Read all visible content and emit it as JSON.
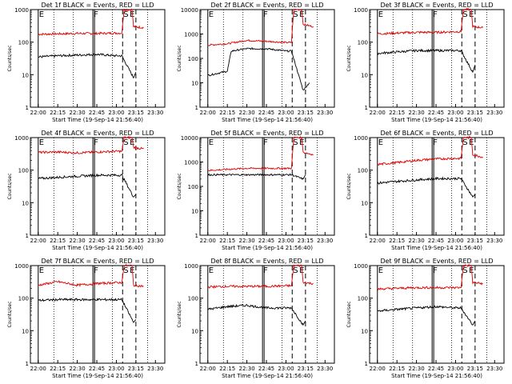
{
  "colors": {
    "events": "#000000",
    "lld": "#e00000",
    "background": "#ffffff"
  },
  "chart_data": [
    {
      "type": "line",
      "title": "Det 1f BLACK = Events, RED = LLD",
      "xlabel": "Start Time (19-Sep-14 21:56:40)",
      "ylabel": "Counts/sec",
      "x_ticks": [
        "22:00",
        "22:15",
        "22:30",
        "22:45",
        "23:00",
        "23:15",
        "23:30"
      ],
      "y_ticks": [
        "1",
        "10",
        "100",
        "1000"
      ],
      "y_scale": "log",
      "ylim": [
        1,
        1000
      ],
      "markers": [
        "E",
        "F",
        "S",
        "E"
      ],
      "series": [
        {
          "values": [
            [
              22.0,
              175
            ],
            [
              22.25,
              180
            ],
            [
              22.5,
              185
            ],
            [
              22.75,
              185
            ],
            [
              23.0,
              190
            ],
            [
              23.07,
              190
            ],
            [
              23.1,
              1000
            ],
            [
              23.2,
              1000
            ],
            [
              23.22,
              300
            ],
            [
              23.35,
              280
            ]
          ]
        },
        {
          "values": [
            [
              22.0,
              35
            ],
            [
              22.25,
              38
            ],
            [
              22.5,
              40
            ],
            [
              22.75,
              42
            ],
            [
              23.0,
              38
            ],
            [
              23.07,
              38
            ],
            [
              23.22,
              8
            ],
            [
              23.25,
              12
            ]
          ]
        }
      ]
    },
    {
      "type": "line",
      "title": "Det 2f BLACK = Events, RED = LLD",
      "xlabel": "Start Time (19-Sep-14 21:56:40)",
      "ylabel": "Counts/sec",
      "x_ticks": [
        "22:00",
        "22:15",
        "22:30",
        "22:45",
        "23:00",
        "23:15",
        "23:30"
      ],
      "y_ticks": [
        "1",
        "10",
        "100",
        "1000",
        "10000"
      ],
      "y_scale": "log",
      "ylim": [
        1,
        10000
      ],
      "markers": [
        "E",
        "F",
        "S",
        "E"
      ],
      "series": [
        {
          "values": [
            [
              22.0,
              350
            ],
            [
              22.25,
              400
            ],
            [
              22.5,
              550
            ],
            [
              22.75,
              500
            ],
            [
              23.0,
              450
            ],
            [
              23.07,
              450
            ],
            [
              23.1,
              10000
            ],
            [
              23.2,
              10000
            ],
            [
              23.22,
              2500
            ],
            [
              23.35,
              2000
            ]
          ]
        },
        {
          "values": [
            [
              22.0,
              20
            ],
            [
              22.25,
              30
            ],
            [
              22.3,
              200
            ],
            [
              22.5,
              250
            ],
            [
              22.75,
              250
            ],
            [
              23.0,
              200
            ],
            [
              23.07,
              200
            ],
            [
              23.22,
              5
            ],
            [
              23.3,
              10
            ]
          ]
        }
      ]
    },
    {
      "type": "line",
      "title": "Det 3f BLACK = Events, RED = LLD",
      "xlabel": "Start Time (19-Sep-14 21:56:40)",
      "ylabel": "Counts/sec",
      "x_ticks": [
        "22:00",
        "22:15",
        "22:30",
        "22:45",
        "23:00",
        "23:15",
        "23:30"
      ],
      "y_ticks": [
        "1",
        "10",
        "100",
        "1000"
      ],
      "y_scale": "log",
      "ylim": [
        1,
        1000
      ],
      "markers": [
        "E",
        "F",
        "S",
        "E"
      ],
      "series": [
        {
          "values": [
            [
              22.0,
              180
            ],
            [
              22.25,
              190
            ],
            [
              22.5,
              200
            ],
            [
              22.75,
              200
            ],
            [
              23.0,
              210
            ],
            [
              23.07,
              210
            ],
            [
              23.1,
              1000
            ],
            [
              23.2,
              1000
            ],
            [
              23.22,
              300
            ],
            [
              23.35,
              280
            ]
          ]
        },
        {
          "values": [
            [
              22.0,
              45
            ],
            [
              22.25,
              50
            ],
            [
              22.5,
              55
            ],
            [
              22.75,
              55
            ],
            [
              23.0,
              55
            ],
            [
              23.07,
              55
            ],
            [
              23.22,
              12
            ],
            [
              23.25,
              20
            ]
          ]
        }
      ]
    },
    {
      "type": "line",
      "title": "Det 4f BLACK = Events, RED = LLD",
      "xlabel": "Start Time (19-Sep-14 21:56:40)",
      "ylabel": "Counts/sec",
      "x_ticks": [
        "22:00",
        "22:15",
        "22:30",
        "22:45",
        "23:00",
        "23:15",
        "23:30"
      ],
      "y_ticks": [
        "1",
        "10",
        "100",
        "1000"
      ],
      "y_scale": "log",
      "ylim": [
        1,
        1000
      ],
      "markers": [
        "E",
        "F",
        "S",
        "E"
      ],
      "series": [
        {
          "values": [
            [
              22.0,
              350
            ],
            [
              22.25,
              360
            ],
            [
              22.5,
              340
            ],
            [
              22.75,
              360
            ],
            [
              23.0,
              380
            ],
            [
              23.07,
              380
            ],
            [
              23.1,
              1000
            ],
            [
              23.2,
              1000
            ],
            [
              23.22,
              500
            ],
            [
              23.35,
              450
            ]
          ]
        },
        {
          "values": [
            [
              22.0,
              55
            ],
            [
              22.25,
              60
            ],
            [
              22.5,
              65
            ],
            [
              22.75,
              70
            ],
            [
              23.0,
              70
            ],
            [
              23.07,
              70
            ],
            [
              23.22,
              15
            ],
            [
              23.25,
              18
            ]
          ]
        }
      ]
    },
    {
      "type": "line",
      "title": "Det 5f BLACK = Events, RED = LLD",
      "xlabel": "Start Time (19-Sep-14 21:56:40)",
      "ylabel": "Counts/sec",
      "x_ticks": [
        "22:00",
        "22:15",
        "22:30",
        "22:45",
        "23:00",
        "23:15",
        "23:30"
      ],
      "y_ticks": [
        "1",
        "10",
        "100",
        "1000",
        "10000"
      ],
      "y_scale": "log",
      "ylim": [
        1,
        10000
      ],
      "markers": [
        "E",
        "F",
        "S",
        "E"
      ],
      "series": [
        {
          "values": [
            [
              22.0,
              450
            ],
            [
              22.25,
              500
            ],
            [
              22.5,
              550
            ],
            [
              22.75,
              550
            ],
            [
              23.0,
              550
            ],
            [
              23.07,
              550
            ],
            [
              23.1,
              10000
            ],
            [
              23.2,
              10000
            ],
            [
              23.22,
              2500
            ],
            [
              23.35,
              2000
            ]
          ]
        },
        {
          "values": [
            [
              22.0,
              300
            ],
            [
              22.25,
              300
            ],
            [
              22.5,
              300
            ],
            [
              22.75,
              300
            ],
            [
              23.0,
              300
            ],
            [
              23.07,
              300
            ],
            [
              23.22,
              200
            ],
            [
              23.25,
              300
            ]
          ]
        }
      ]
    },
    {
      "type": "line",
      "title": "Det 6f BLACK = Events, RED = LLD",
      "xlabel": "Start Time (19-Sep-14 21:56:40)",
      "ylabel": "Counts/sec",
      "x_ticks": [
        "22:00",
        "22:15",
        "22:30",
        "22:45",
        "23:00",
        "23:15",
        "23:30"
      ],
      "y_ticks": [
        "1",
        "10",
        "100",
        "1000"
      ],
      "y_scale": "log",
      "ylim": [
        1,
        1000
      ],
      "markers": [
        "E",
        "F",
        "S",
        "E"
      ],
      "series": [
        {
          "values": [
            [
              22.0,
              150
            ],
            [
              22.25,
              170
            ],
            [
              22.5,
              200
            ],
            [
              22.75,
              220
            ],
            [
              23.0,
              230
            ],
            [
              23.07,
              230
            ],
            [
              23.1,
              1000
            ],
            [
              23.2,
              1000
            ],
            [
              23.22,
              300
            ],
            [
              23.35,
              250
            ]
          ]
        },
        {
          "values": [
            [
              22.0,
              40
            ],
            [
              22.25,
              45
            ],
            [
              22.5,
              50
            ],
            [
              22.75,
              55
            ],
            [
              23.0,
              55
            ],
            [
              23.07,
              55
            ],
            [
              23.22,
              15
            ],
            [
              23.25,
              18
            ]
          ]
        }
      ]
    },
    {
      "type": "line",
      "title": "Det 7f BLACK = Events, RED = LLD",
      "xlabel": "Start Time (19-Sep-14 21:56:40)",
      "ylabel": "Counts/sec",
      "x_ticks": [
        "22:00",
        "22:15",
        "22:30",
        "22:45",
        "23:00",
        "23:15",
        "23:30"
      ],
      "y_ticks": [
        "1",
        "10",
        "100",
        "1000"
      ],
      "y_scale": "log",
      "ylim": [
        1,
        1000
      ],
      "markers": [
        "E",
        "F",
        "S",
        "E"
      ],
      "series": [
        {
          "values": [
            [
              22.0,
              250
            ],
            [
              22.25,
              320
            ],
            [
              22.5,
              250
            ],
            [
              22.75,
              280
            ],
            [
              23.0,
              300
            ],
            [
              23.07,
              300
            ],
            [
              23.1,
              1000
            ],
            [
              23.2,
              1000
            ],
            [
              23.22,
              250
            ],
            [
              23.35,
              230
            ]
          ]
        },
        {
          "values": [
            [
              22.0,
              85
            ],
            [
              22.25,
              90
            ],
            [
              22.5,
              90
            ],
            [
              22.75,
              90
            ],
            [
              23.0,
              90
            ],
            [
              23.07,
              90
            ],
            [
              23.22,
              18
            ],
            [
              23.25,
              22
            ]
          ]
        }
      ]
    },
    {
      "type": "line",
      "title": "Det 8f BLACK = Events, RED = LLD",
      "xlabel": "Start Time (19-Sep-14 21:56:40)",
      "ylabel": "Counts/sec",
      "x_ticks": [
        "22:00",
        "22:15",
        "22:30",
        "22:45",
        "23:00",
        "23:15",
        "23:30"
      ],
      "y_ticks": [
        "1",
        "10",
        "100",
        "1000"
      ],
      "y_scale": "log",
      "ylim": [
        1,
        1000
      ],
      "markers": [
        "E",
        "F",
        "S",
        "E"
      ],
      "series": [
        {
          "values": [
            [
              22.0,
              220
            ],
            [
              22.25,
              230
            ],
            [
              22.5,
              230
            ],
            [
              22.75,
              230
            ],
            [
              23.0,
              240
            ],
            [
              23.07,
              240
            ],
            [
              23.1,
              1000
            ],
            [
              23.2,
              1000
            ],
            [
              23.22,
              300
            ],
            [
              23.35,
              280
            ]
          ]
        },
        {
          "values": [
            [
              22.0,
              45
            ],
            [
              22.25,
              55
            ],
            [
              22.5,
              60
            ],
            [
              22.75,
              50
            ],
            [
              23.0,
              50
            ],
            [
              23.07,
              50
            ],
            [
              23.22,
              15
            ],
            [
              23.25,
              20
            ]
          ]
        }
      ]
    },
    {
      "type": "line",
      "title": "Det 9f BLACK = Events, RED = LLD",
      "xlabel": "Start Time (19-Sep-14 21:56:40)",
      "ylabel": "Counts/sec",
      "x_ticks": [
        "22:00",
        "22:15",
        "22:30",
        "22:45",
        "23:00",
        "23:15",
        "23:30"
      ],
      "y_ticks": [
        "1",
        "10",
        "100",
        "1000"
      ],
      "y_scale": "log",
      "ylim": [
        1,
        1000
      ],
      "markers": [
        "E",
        "F",
        "S",
        "E"
      ],
      "series": [
        {
          "values": [
            [
              22.0,
              190
            ],
            [
              22.25,
              200
            ],
            [
              22.5,
              210
            ],
            [
              22.75,
              210
            ],
            [
              23.0,
              210
            ],
            [
              23.07,
              210
            ],
            [
              23.1,
              1000
            ],
            [
              23.2,
              1000
            ],
            [
              23.22,
              300
            ],
            [
              23.35,
              280
            ]
          ]
        },
        {
          "values": [
            [
              22.0,
              40
            ],
            [
              22.25,
              45
            ],
            [
              22.5,
              50
            ],
            [
              22.75,
              55
            ],
            [
              23.0,
              50
            ],
            [
              23.07,
              50
            ],
            [
              23.22,
              15
            ],
            [
              23.25,
              20
            ]
          ]
        }
      ]
    }
  ]
}
